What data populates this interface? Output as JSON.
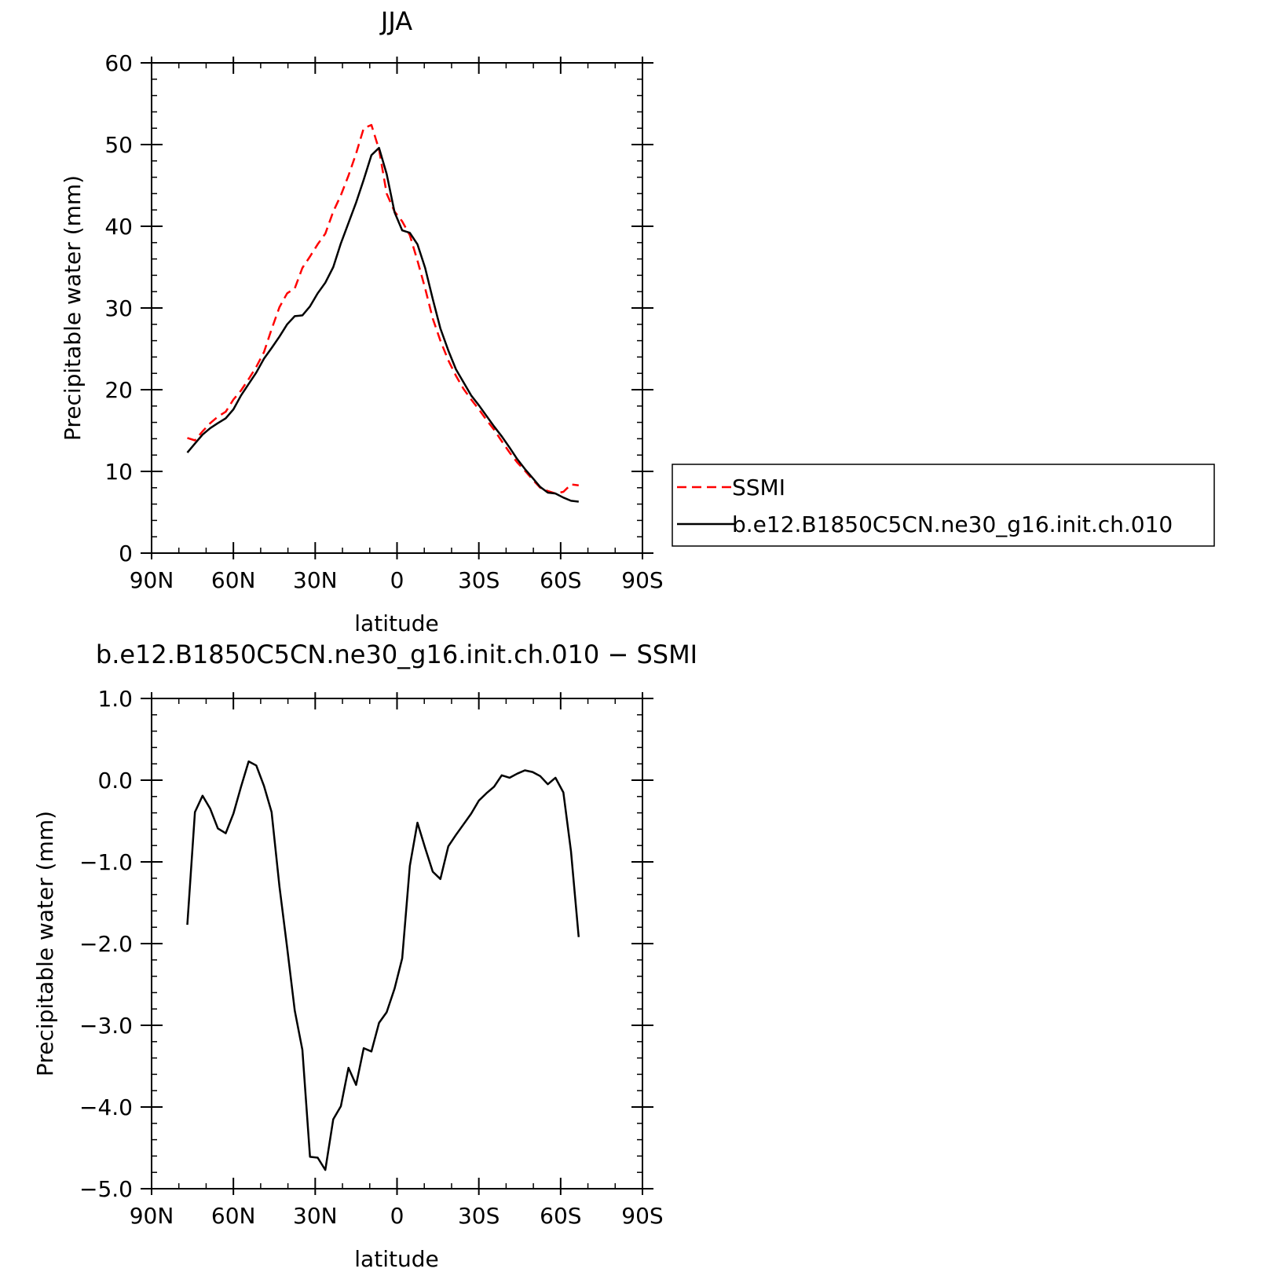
{
  "chart_data": [
    {
      "type": "line",
      "title": "JJA",
      "xlabel": "latitude",
      "ylabel": "Precipitable water (mm)",
      "xlim": [
        90,
        -90
      ],
      "ylim": [
        0,
        60
      ],
      "xticks": [
        90,
        60,
        30,
        0,
        -30,
        -60,
        -90
      ],
      "xtick_labels": [
        "90N",
        "60N",
        "30N",
        "0",
        "30S",
        "60S",
        "90S"
      ],
      "yticks": [
        0,
        10,
        20,
        30,
        40,
        50,
        60
      ],
      "ytick_labels": [
        "0",
        "10",
        "20",
        "30",
        "40",
        "50",
        "60"
      ],
      "grid": false,
      "legend_position": "right",
      "series": [
        {
          "name": "SSMI",
          "color": "#ff0000",
          "dash": "dashed",
          "x": [
            76.9,
            74.1,
            71.3,
            68.5,
            65.7,
            62.8,
            60.0,
            57.2,
            54.4,
            51.6,
            48.8,
            46.0,
            43.1,
            40.3,
            37.5,
            34.7,
            31.9,
            29.1,
            26.3,
            23.4,
            20.6,
            17.8,
            15.0,
            12.2,
            9.4,
            6.6,
            3.8,
            0.9,
            -1.9,
            -4.7,
            -7.5,
            -10.3,
            -13.1,
            -15.9,
            -18.8,
            -21.6,
            -24.4,
            -27.2,
            -30.0,
            -32.8,
            -35.6,
            -38.4,
            -41.3,
            -44.1,
            -46.9,
            -49.7,
            -52.5,
            -55.3,
            -58.1,
            -61.0,
            -63.8,
            -66.6
          ],
          "y": [
            14.1,
            13.8,
            14.9,
            15.9,
            16.7,
            17.3,
            18.8,
            19.9,
            21.3,
            22.8,
            24.6,
            27.4,
            30.1,
            31.8,
            32.4,
            34.9,
            36.3,
            37.8,
            39.1,
            41.8,
            43.8,
            46.2,
            48.9,
            52.0,
            52.4,
            49.4,
            44.0,
            41.8,
            40.6,
            38.9,
            35.8,
            32.4,
            28.7,
            26.0,
            23.6,
            21.7,
            20.1,
            18.8,
            17.6,
            16.3,
            15.1,
            13.7,
            12.3,
            11.1,
            10.1,
            9.0,
            8.0,
            7.6,
            7.3,
            7.5,
            8.4,
            8.3
          ],
          "x_end_trim": true
        },
        {
          "name": "b.e12.B1850C5CN.ne30_g16.init.ch.010",
          "color": "#000000",
          "dash": "solid",
          "x": [
            76.9,
            74.1,
            71.3,
            68.5,
            65.7,
            62.8,
            60.0,
            57.2,
            54.4,
            51.6,
            48.8,
            46.0,
            43.1,
            40.3,
            37.5,
            34.7,
            31.9,
            29.1,
            26.3,
            23.4,
            20.6,
            17.8,
            15.0,
            12.2,
            9.4,
            6.6,
            3.8,
            0.9,
            -1.9,
            -4.7,
            -7.5,
            -10.3,
            -13.1,
            -15.9,
            -18.8,
            -21.6,
            -24.4,
            -27.2,
            -30.0,
            -32.8,
            -35.6,
            -38.4,
            -41.3,
            -44.1,
            -46.9,
            -49.7,
            -52.5,
            -55.3,
            -58.1,
            -61.0,
            -63.8,
            -66.6
          ],
          "y": [
            12.3,
            13.4,
            14.5,
            15.3,
            15.9,
            16.5,
            17.6,
            19.3,
            20.7,
            22.1,
            23.8,
            25.1,
            26.5,
            28.0,
            29.0,
            29.1,
            30.2,
            31.8,
            33.1,
            35.0,
            37.9,
            40.4,
            42.9,
            45.7,
            48.7,
            49.6,
            46.4,
            41.7,
            39.5,
            39.2,
            37.8,
            34.9,
            31.1,
            27.5,
            24.8,
            22.5,
            20.9,
            19.3,
            18.1,
            16.8,
            15.5,
            14.3,
            12.9,
            11.5,
            10.3,
            9.2,
            8.1,
            7.4,
            7.3,
            6.8,
            6.4,
            6.3
          ]
        }
      ]
    },
    {
      "type": "line",
      "title": "b.e12.B1850C5CN.ne30_g16.init.ch.010 − SSMI",
      "xlabel": "latitude",
      "ylabel": "Precipitable water (mm)",
      "xlim": [
        90,
        -90
      ],
      "ylim": [
        -5,
        1
      ],
      "xticks": [
        90,
        60,
        30,
        0,
        -30,
        -60,
        -90
      ],
      "xtick_labels": [
        "90N",
        "60N",
        "30N",
        "0",
        "30S",
        "60S",
        "90S"
      ],
      "yticks": [
        1,
        0,
        -1,
        -2,
        -3,
        -4,
        -5
      ],
      "ytick_labels": [
        "1.0",
        "0.0",
        "−1.0",
        "−2.0",
        "−3.0",
        "−4.0",
        "−5.0"
      ],
      "grid": false,
      "series": [
        {
          "color": "#000000",
          "dash": "solid",
          "x": [
            76.9,
            74.1,
            71.3,
            68.5,
            65.7,
            62.8,
            60.0,
            57.2,
            54.4,
            51.6,
            48.8,
            46.0,
            43.1,
            40.3,
            37.5,
            34.7,
            31.9,
            29.1,
            26.3,
            23.4,
            20.6,
            17.8,
            15.0,
            12.2,
            9.4,
            6.6,
            3.8,
            0.9,
            -1.9,
            -4.7,
            -7.5,
            -10.3,
            -13.1,
            -15.9,
            -18.8,
            -21.6,
            -24.4,
            -27.2,
            -30.0,
            -32.8,
            -35.6,
            -38.4,
            -41.3,
            -44.1,
            -46.9,
            -49.7,
            -52.5,
            -55.3,
            -58.1,
            -61.0,
            -63.8,
            -66.6
          ],
          "y": [
            -1.77,
            -0.39,
            -0.19,
            -0.35,
            -0.59,
            -0.65,
            -0.41,
            -0.08,
            0.23,
            0.18,
            -0.07,
            -0.39,
            -1.3,
            -2.05,
            -2.82,
            -3.3,
            -4.61,
            -4.62,
            -4.77,
            -4.15,
            -3.99,
            -3.52,
            -3.73,
            -3.28,
            -3.32,
            -2.97,
            -2.84,
            -2.55,
            -2.18,
            -1.05,
            -0.52,
            -0.83,
            -1.12,
            -1.21,
            -0.81,
            -0.67,
            -0.54,
            -0.41,
            -0.25,
            -0.16,
            -0.08,
            0.06,
            0.03,
            0.08,
            0.12,
            0.1,
            0.05,
            -0.05,
            0.03,
            -0.15,
            -0.87,
            -1.92
          ]
        }
      ]
    }
  ]
}
